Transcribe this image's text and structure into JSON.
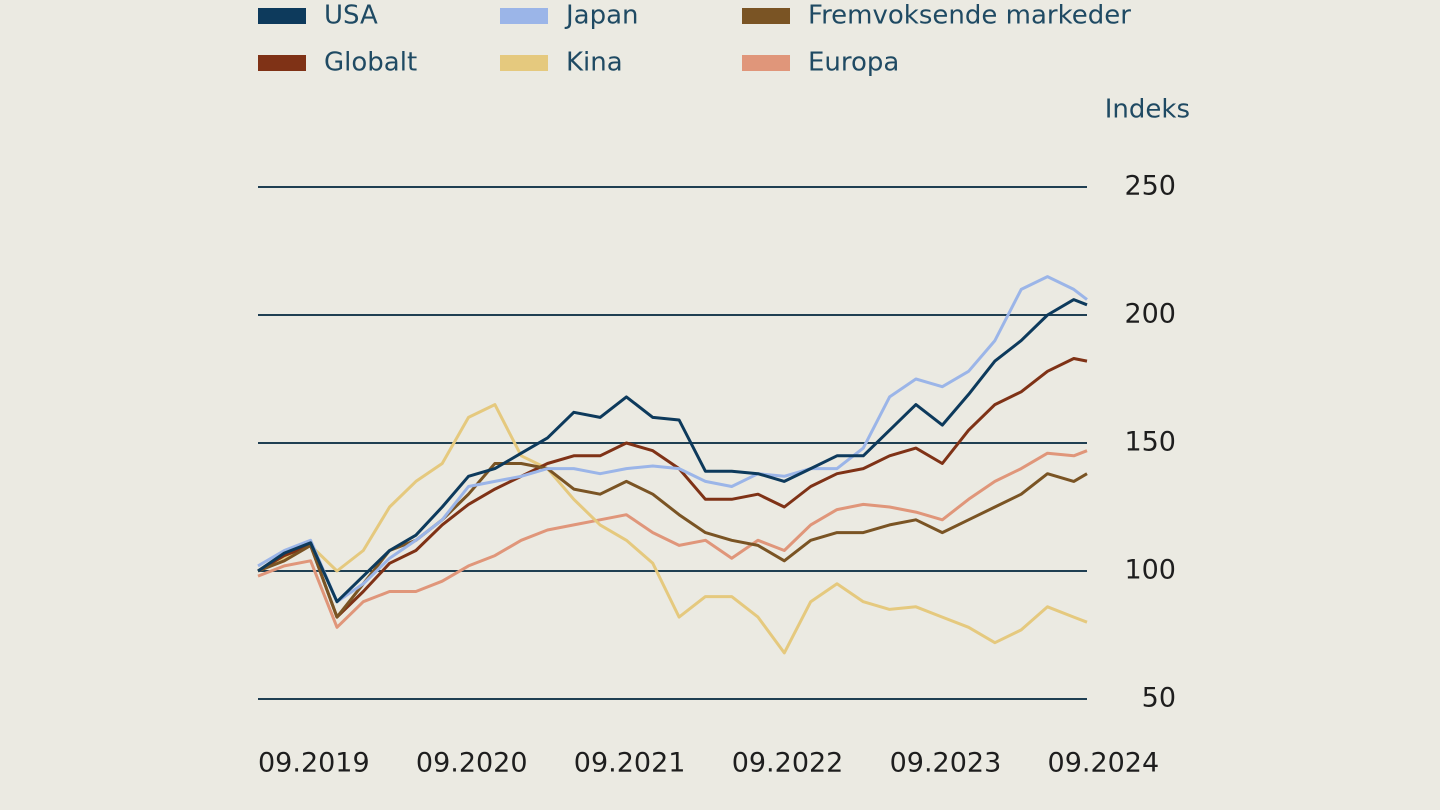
{
  "chart_data": {
    "type": "line",
    "y_axis_label": "Indeks",
    "x": [
      "09.2019",
      "11.2019",
      "01.2020",
      "03.2020",
      "05.2020",
      "07.2020",
      "09.2020",
      "11.2020",
      "01.2021",
      "03.2021",
      "05.2021",
      "07.2021",
      "09.2021",
      "11.2021",
      "01.2022",
      "03.2022",
      "05.2022",
      "07.2022",
      "09.2022",
      "11.2022",
      "01.2023",
      "03.2023",
      "05.2023",
      "07.2023",
      "09.2023",
      "11.2023",
      "01.2024",
      "03.2024",
      "05.2024",
      "07.2024",
      "09.2024",
      "11.2024",
      "12.2024"
    ],
    "xlim": [
      "09.2019",
      "12.2024"
    ],
    "xticks": [
      "09.2019",
      "09.2020",
      "09.2021",
      "09.2022",
      "09.2023",
      "09.2024"
    ],
    "ylim": [
      50,
      250
    ],
    "yticks": [
      50,
      100,
      150,
      200,
      250
    ],
    "grid": true,
    "series": [
      {
        "name": "USA",
        "color": "#0d3a5c",
        "values": [
          100,
          107,
          111,
          88,
          98,
          108,
          114,
          125,
          137,
          140,
          146,
          152,
          162,
          160,
          168,
          160,
          159,
          139,
          139,
          138,
          135,
          140,
          145,
          145,
          155,
          165,
          157,
          169,
          182,
          190,
          200,
          206,
          204
        ]
      },
      {
        "name": "Japan",
        "color": "#9bb5e8",
        "values": [
          102,
          108,
          112,
          88,
          95,
          105,
          112,
          120,
          133,
          135,
          137,
          140,
          140,
          138,
          140,
          141,
          140,
          135,
          133,
          138,
          137,
          140,
          140,
          148,
          168,
          175,
          172,
          178,
          190,
          210,
          215,
          210,
          206
        ]
      },
      {
        "name": "Fremvoksende markeder",
        "color": "#7a5424",
        "values": [
          100,
          104,
          110,
          82,
          95,
          108,
          112,
          120,
          130,
          142,
          142,
          140,
          132,
          130,
          135,
          130,
          122,
          115,
          112,
          110,
          104,
          112,
          115,
          115,
          118,
          120,
          115,
          120,
          125,
          130,
          138,
          135,
          138
        ]
      },
      {
        "name": "Globalt",
        "color": "#7f3216",
        "values": [
          100,
          106,
          110,
          82,
          92,
          103,
          108,
          118,
          126,
          132,
          137,
          142,
          145,
          145,
          150,
          147,
          140,
          128,
          128,
          130,
          125,
          133,
          138,
          140,
          145,
          148,
          142,
          155,
          165,
          170,
          178,
          183,
          182
        ]
      },
      {
        "name": "Kina",
        "color": "#e5c97e",
        "values": [
          100,
          105,
          110,
          100,
          108,
          125,
          135,
          142,
          160,
          165,
          145,
          140,
          128,
          118,
          112,
          103,
          82,
          90,
          90,
          82,
          68,
          88,
          95,
          88,
          85,
          86,
          82,
          78,
          72,
          77,
          86,
          82,
          80
        ]
      },
      {
        "name": "Europa",
        "color": "#e0967a",
        "values": [
          98,
          102,
          104,
          78,
          88,
          92,
          92,
          96,
          102,
          106,
          112,
          116,
          118,
          120,
          122,
          115,
          110,
          112,
          105,
          112,
          108,
          118,
          124,
          126,
          125,
          123,
          120,
          128,
          135,
          140,
          146,
          145,
          147
        ]
      }
    ]
  }
}
